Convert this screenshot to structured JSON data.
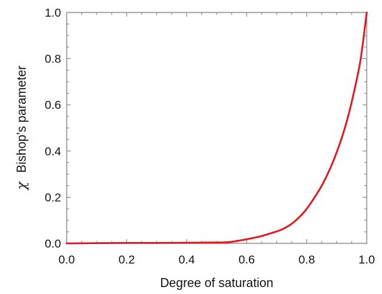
{
  "chart_data": {
    "type": "line",
    "title": "",
    "xlabel": "Degree of saturation",
    "ylabel": {
      "symbol": "χ",
      "text": "Bishop's parameter"
    },
    "xlim": [
      0.0,
      1.0
    ],
    "ylim": [
      0.0,
      1.0
    ],
    "x_ticks": [
      "0.0",
      "0.2",
      "0.4",
      "0.6",
      "0.8",
      "1.0"
    ],
    "y_ticks": [
      "0.0",
      "0.2",
      "0.4",
      "0.6",
      "0.8",
      "1.0"
    ],
    "grid": false,
    "legend": "none",
    "series": [
      {
        "color": "#e8141c",
        "x": [
          0.0,
          0.1,
          0.2,
          0.3,
          0.4,
          0.5,
          0.52,
          0.55,
          0.6,
          0.65,
          0.7,
          0.72,
          0.75,
          0.78,
          0.8,
          0.82,
          0.85,
          0.88,
          0.9,
          0.92,
          0.94,
          0.96,
          0.98,
          1.0
        ],
        "y": [
          0.0,
          0.001,
          0.002,
          0.002,
          0.003,
          0.004,
          0.004,
          0.007,
          0.018,
          0.032,
          0.052,
          0.062,
          0.085,
          0.12,
          0.15,
          0.187,
          0.25,
          0.33,
          0.395,
          0.47,
          0.56,
          0.67,
          0.8,
          1.0
        ]
      }
    ]
  }
}
